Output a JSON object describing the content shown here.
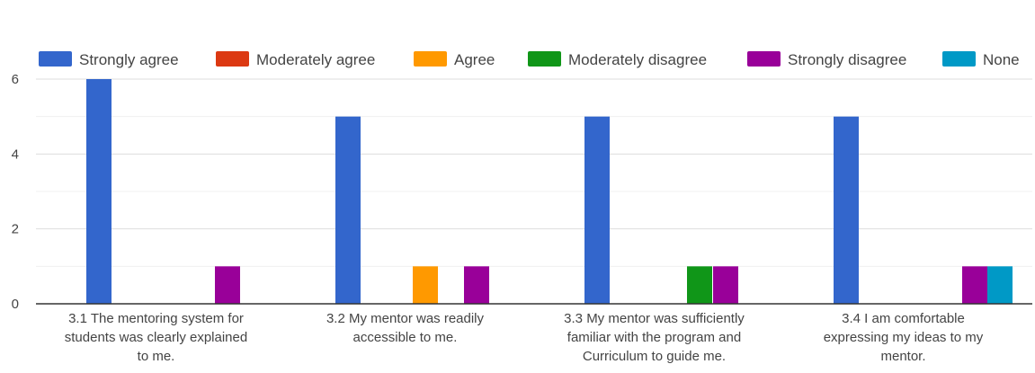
{
  "chart_data": {
    "type": "bar",
    "categories": [
      "3.1 The mentoring system for students was clearly explained to me.",
      "3.2 My mentor was readily accessible to me.",
      "3.3 My mentor was sufficiently familiar with the program and Curriculum to guide me.",
      "3.4 I am comfortable expressing my ideas to my mentor."
    ],
    "category_lines": [
      [
        "3.1 The mentoring system for",
        "students was clearly explained",
        "to me."
      ],
      [
        "3.2 My mentor was readily",
        "accessible to me."
      ],
      [
        "3.3 My mentor was sufficiently",
        "familiar with the program and",
        "Curriculum to guide me."
      ],
      [
        "3.4 I am comfortable",
        "expressing my ideas to my",
        "mentor."
      ]
    ],
    "series": [
      {
        "name": "Strongly agree",
        "color": "#3366cc",
        "values": [
          6,
          5,
          5,
          5
        ]
      },
      {
        "name": "Moderately agree",
        "color": "#dc3912",
        "values": [
          0,
          0,
          0,
          0
        ]
      },
      {
        "name": "Agree",
        "color": "#ff9900",
        "values": [
          0,
          1,
          0,
          0
        ]
      },
      {
        "name": "Moderately disagree",
        "color": "#109618",
        "values": [
          0,
          0,
          1,
          0
        ]
      },
      {
        "name": "Strongly disagree",
        "color": "#990099",
        "values": [
          1,
          1,
          1,
          1
        ]
      },
      {
        "name": "None",
        "color": "#0099c6",
        "values": [
          0,
          0,
          0,
          1
        ]
      }
    ],
    "yticks": [
      0,
      2,
      4,
      6
    ],
    "ylim": [
      0,
      6
    ],
    "grid": true,
    "legend_position": "top"
  }
}
